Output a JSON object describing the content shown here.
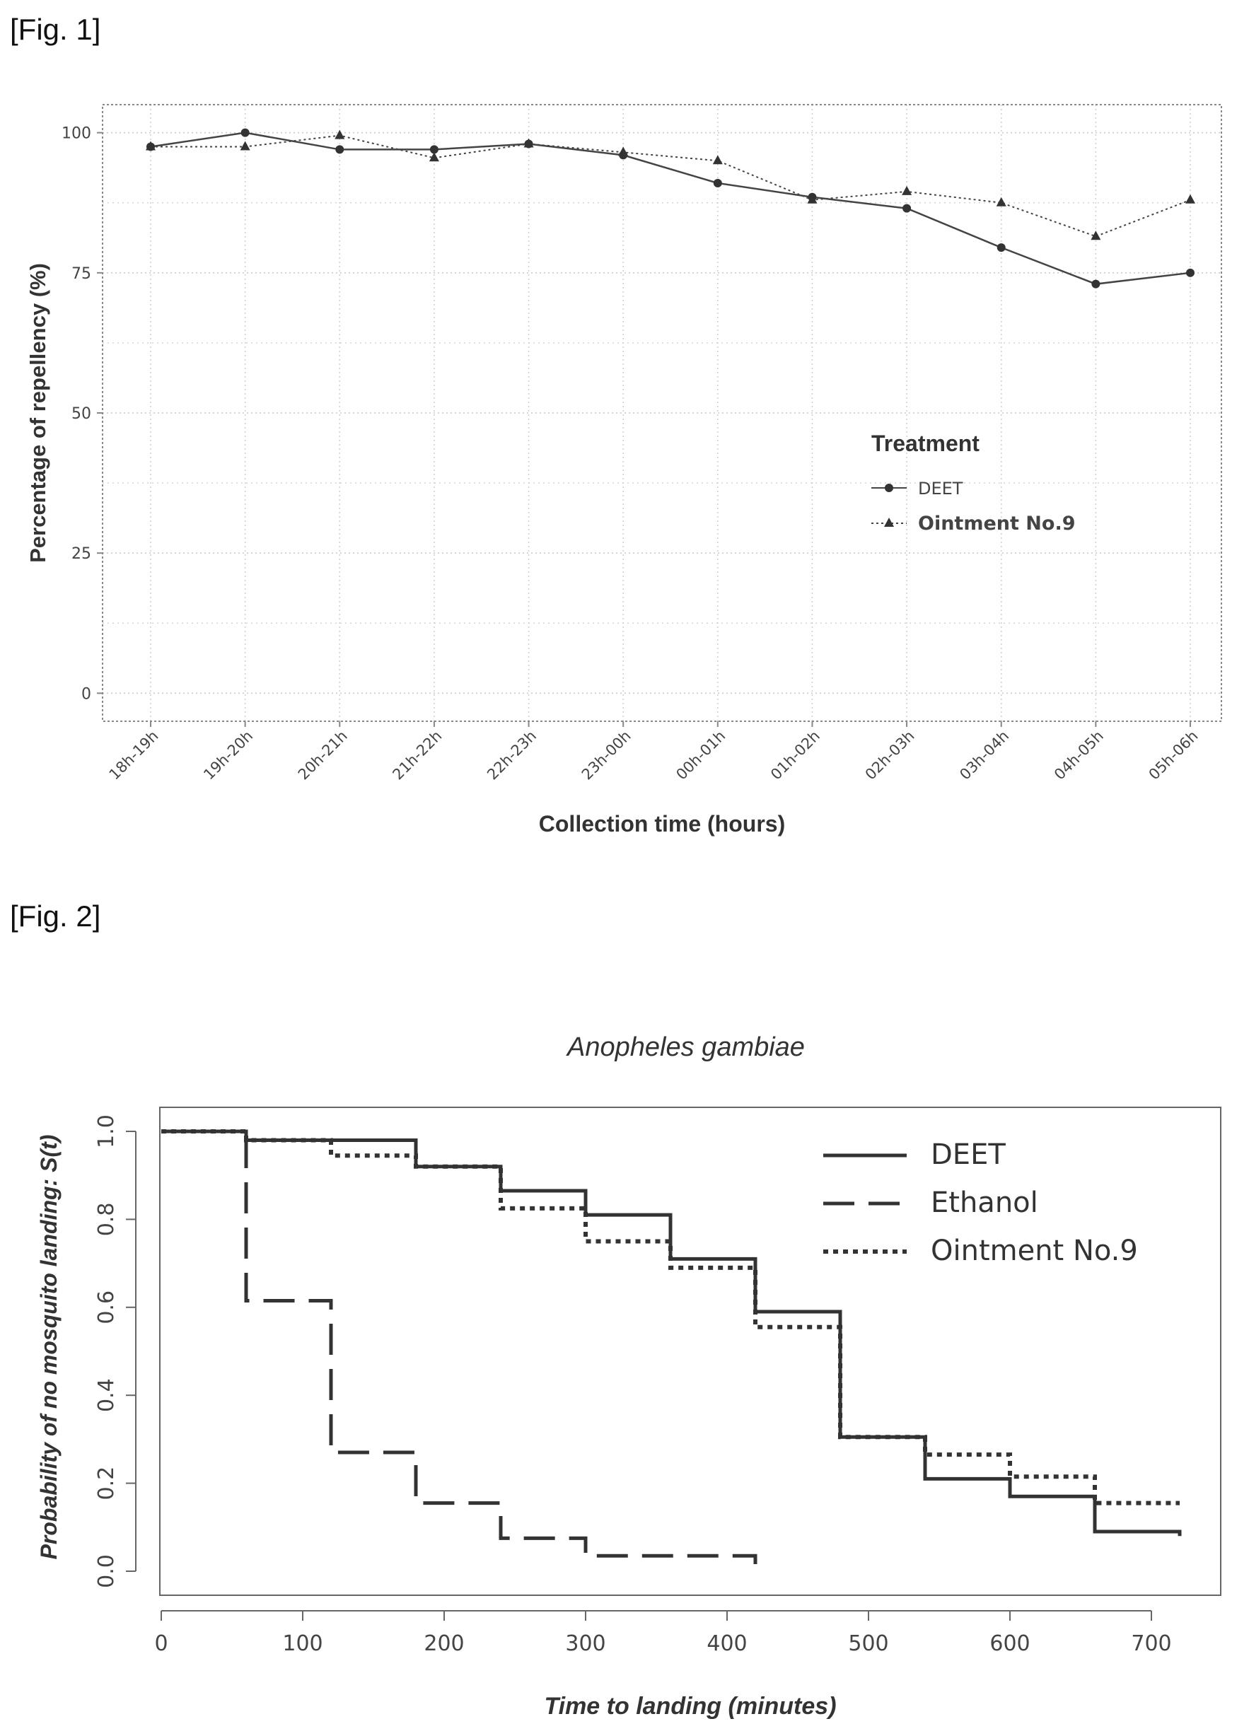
{
  "figures": {
    "fig1_label": "[Fig. 1]",
    "fig2_label": "[Fig. 2]"
  },
  "chart_data": [
    {
      "type": "line",
      "title": "",
      "xlabel": "Collection time (hours)",
      "ylabel": "Percentage of repellency (%)",
      "categories": [
        "18h-19h",
        "19h-20h",
        "20h-21h",
        "21h-22h",
        "22h-23h",
        "23h-00h",
        "00h-01h",
        "01h-02h",
        "02h-03h",
        "03h-04h",
        "04h-05h",
        "05h-06h"
      ],
      "y_ticks": [
        0,
        25,
        50,
        75,
        100
      ],
      "ylim": [
        -5,
        105
      ],
      "grid": true,
      "legend_title": "Treatment",
      "legend_position": "center-right",
      "series": [
        {
          "name": "DEET",
          "marker": "circle",
          "dash": "solid",
          "values": [
            97.5,
            100,
            97,
            97,
            98,
            96,
            91,
            88.5,
            86.5,
            79.5,
            73,
            75
          ]
        },
        {
          "name": "Ointment No.9",
          "marker": "triangle",
          "dash": "dotted",
          "values": [
            97.5,
            97.5,
            99.5,
            95.5,
            98,
            96.5,
            95,
            88,
            89.5,
            87.5,
            81.5,
            88
          ]
        }
      ]
    },
    {
      "type": "line",
      "subtype": "step",
      "title": "Anopheles gambiae",
      "xlabel": "Time to landing (minutes)",
      "ylabel": "Probability of no mosquito landing: S(t)",
      "x_ticks": [
        0,
        100,
        200,
        300,
        400,
        500,
        600,
        700
      ],
      "y_ticks": [
        "0.0",
        "0.2",
        "0.4",
        "0.6",
        "0.8",
        "1.0"
      ],
      "xlim": [
        0,
        750
      ],
      "ylim": [
        -0.04,
        1.04
      ],
      "legend_position": "top-right",
      "series": [
        {
          "name": "DEET",
          "dash": "solid",
          "x": [
            0,
            60,
            180,
            240,
            300,
            360,
            420,
            480,
            540,
            600,
            660,
            720
          ],
          "values": [
            1.0,
            0.98,
            0.92,
            0.865,
            0.81,
            0.71,
            0.59,
            0.305,
            0.21,
            0.17,
            0.09,
            0.08
          ]
        },
        {
          "name": "Ethanol",
          "dash": "dashed",
          "x": [
            0,
            60,
            120,
            180,
            240,
            300,
            420
          ],
          "values": [
            1.0,
            0.615,
            0.27,
            0.155,
            0.075,
            0.035,
            0.0
          ]
        },
        {
          "name": "Ointment No.9",
          "dash": "dotted",
          "x": [
            0,
            60,
            120,
            180,
            240,
            300,
            360,
            420,
            480,
            540,
            600,
            660,
            720
          ],
          "values": [
            1.0,
            0.98,
            0.945,
            0.92,
            0.825,
            0.75,
            0.69,
            0.555,
            0.305,
            0.265,
            0.215,
            0.155,
            0.155
          ]
        }
      ]
    }
  ]
}
